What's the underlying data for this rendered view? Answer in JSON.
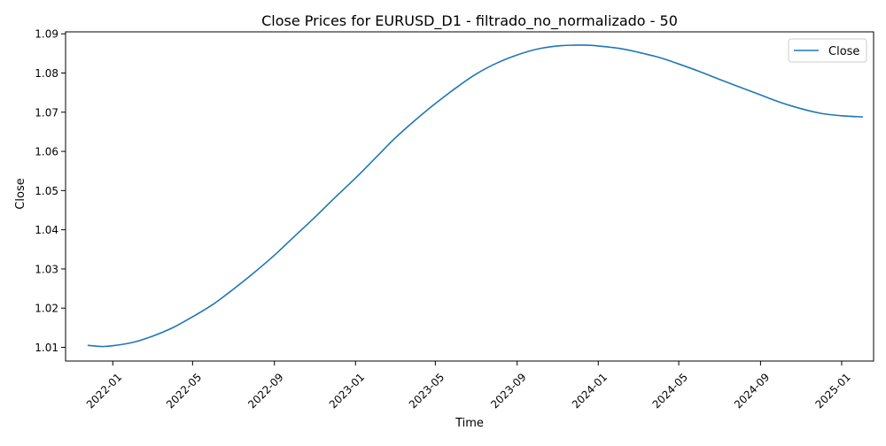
{
  "chart_data": {
    "type": "line",
    "title": "Close Prices for EURUSD_D1 - filtrado_no_normalizado - 50",
    "xlabel": "Time",
    "ylabel": "Close",
    "x_tick_labels": [
      "2022-01",
      "2022-05",
      "2022-09",
      "2023-01",
      "2023-05",
      "2023-09",
      "2024-01",
      "2024-05",
      "2024-09",
      "2025-01"
    ],
    "y_tick_labels": [
      "1.01",
      "1.02",
      "1.03",
      "1.04",
      "1.05",
      "1.06",
      "1.07",
      "1.08",
      "1.09"
    ],
    "xlim": [
      "2021-10-22",
      "2025-02-18"
    ],
    "ylim": [
      1.0065,
      1.0905
    ],
    "grid": false,
    "legend_position": "upper right",
    "series": [
      {
        "name": "Close",
        "color": "#1f77b4",
        "x": [
          "2021-11-25",
          "2021-12-15",
          "2022-01-01",
          "2022-02-01",
          "2022-03-01",
          "2022-04-01",
          "2022-05-01",
          "2022-06-01",
          "2022-07-01",
          "2022-08-01",
          "2022-09-01",
          "2022-10-01",
          "2022-11-01",
          "2022-12-01",
          "2023-01-01",
          "2023-02-01",
          "2023-03-01",
          "2023-04-01",
          "2023-05-01",
          "2023-06-01",
          "2023-07-01",
          "2023-08-01",
          "2023-09-01",
          "2023-10-01",
          "2023-11-01",
          "2023-11-25",
          "2023-12-15",
          "2024-01-01",
          "2024-02-01",
          "2024-03-01",
          "2024-04-01",
          "2024-05-01",
          "2024-06-01",
          "2024-07-01",
          "2024-08-01",
          "2024-09-01",
          "2024-10-01",
          "2024-11-01",
          "2024-12-01",
          "2025-01-01",
          "2025-02-01"
        ],
        "values": [
          1.0105,
          1.0102,
          1.0104,
          1.0113,
          1.0128,
          1.015,
          1.0178,
          1.021,
          1.0248,
          1.029,
          1.0335,
          1.0383,
          1.0432,
          1.0482,
          1.0532,
          1.0585,
          1.0633,
          1.068,
          1.0722,
          1.0762,
          1.0797,
          1.0825,
          1.0846,
          1.0861,
          1.0869,
          1.0871,
          1.0871,
          1.0869,
          1.0863,
          1.0853,
          1.084,
          1.0823,
          1.0804,
          1.0784,
          1.0764,
          1.0744,
          1.0725,
          1.0709,
          1.0697,
          1.0691,
          1.0688
        ]
      }
    ]
  }
}
